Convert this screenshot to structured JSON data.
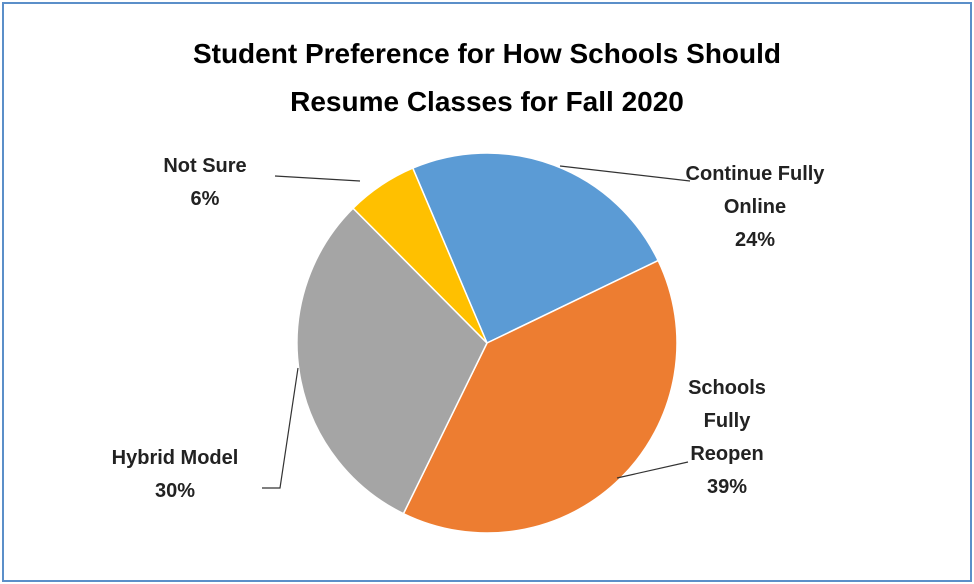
{
  "chart_data": {
    "type": "pie",
    "title": "Student Preference for How Schools Should Resume Classes for Fall 2020",
    "categories": [
      "Continue Fully Online",
      "Schools Fully Reopen",
      "Hybrid Model",
      "Not Sure"
    ],
    "values": [
      24,
      39,
      30,
      6
    ],
    "value_labels": [
      "24%",
      "39%",
      "30%",
      "6%"
    ],
    "colors": [
      "#5b9bd5",
      "#ed7d31",
      "#a5a5a5",
      "#ffc000"
    ]
  }
}
